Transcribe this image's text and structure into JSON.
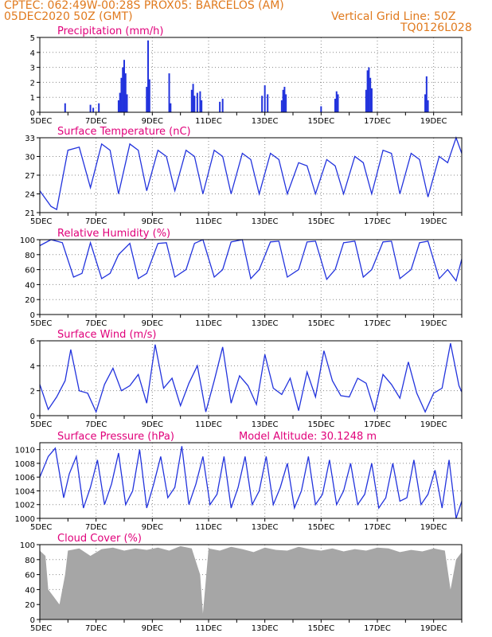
{
  "header": {
    "line1": "CPTEC:   062:49W-00:28S   PROX05: BARCELOS (AM)",
    "line2": "05DEC2020 50Z (GMT)",
    "grid_note": "Vertical Grid Line: 50Z",
    "code": "TQ0126L028"
  },
  "chart_data": [
    {
      "type": "bar",
      "title": "Precipitation (mm/h)",
      "ylim": [
        0,
        5
      ],
      "yticks": [
        0,
        1,
        2,
        3,
        4,
        5
      ],
      "xticks": [
        "5DEC",
        "7DEC",
        "9DEC",
        "11DEC",
        "13DEC",
        "15DEC",
        "17DEC",
        "19DEC"
      ],
      "days": 15,
      "events": [
        [
          0.9,
          0.6
        ],
        [
          1.8,
          0.5
        ],
        [
          1.9,
          0.3
        ],
        [
          2.1,
          0.6
        ],
        [
          2.8,
          0.8
        ],
        [
          2.85,
          1.3
        ],
        [
          2.9,
          2.3
        ],
        [
          2.95,
          3.0
        ],
        [
          3.0,
          3.5
        ],
        [
          3.05,
          2.6
        ],
        [
          3.1,
          1.2
        ],
        [
          3.8,
          1.7
        ],
        [
          3.85,
          4.8
        ],
        [
          3.9,
          2.2
        ],
        [
          4.6,
          2.6
        ],
        [
          4.65,
          0.6
        ],
        [
          5.4,
          1.5
        ],
        [
          5.45,
          1.9
        ],
        [
          5.5,
          1.1
        ],
        [
          5.6,
          1.3
        ],
        [
          5.7,
          1.4
        ],
        [
          5.75,
          0.8
        ],
        [
          6.4,
          0.7
        ],
        [
          6.5,
          0.9
        ],
        [
          7.9,
          1.1
        ],
        [
          8.0,
          1.8
        ],
        [
          8.1,
          1.2
        ],
        [
          8.6,
          0.8
        ],
        [
          8.65,
          1.5
        ],
        [
          8.7,
          1.7
        ],
        [
          8.75,
          1.2
        ],
        [
          10.0,
          0.4
        ],
        [
          10.5,
          0.9
        ],
        [
          10.55,
          1.4
        ],
        [
          10.6,
          1.2
        ],
        [
          11.6,
          1.5
        ],
        [
          11.65,
          2.8
        ],
        [
          11.7,
          3.0
        ],
        [
          11.75,
          2.3
        ],
        [
          11.8,
          1.6
        ],
        [
          13.7,
          1.2
        ],
        [
          13.75,
          2.4
        ],
        [
          13.8,
          0.8
        ]
      ],
      "vgrid": [
        "5DEC",
        "7DEC",
        "9DEC",
        "11DEC",
        "13DEC",
        "15DEC",
        "17DEC",
        "19DEC"
      ]
    },
    {
      "type": "line",
      "title": "Surface Temperature (nC)",
      "ylim": [
        21,
        33
      ],
      "yticks": [
        21,
        24,
        27,
        30,
        33
      ],
      "xticks": [
        "5DEC",
        "7DEC",
        "9DEC",
        "11DEC",
        "13DEC",
        "15DEC",
        "17DEC",
        "19DEC"
      ],
      "days": 15,
      "series": [
        {
          "x": [
            0,
            0.4,
            0.6,
            1.0,
            1.4,
            1.8,
            2.2,
            2.5,
            2.8,
            3.2,
            3.5,
            3.8,
            4.2,
            4.5,
            4.8,
            5.2,
            5.5,
            5.8,
            6.2,
            6.5,
            6.8,
            7.2,
            7.5,
            7.8,
            8.2,
            8.5,
            8.8,
            9.2,
            9.5,
            9.8,
            10.2,
            10.5,
            10.8,
            11.2,
            11.5,
            11.8,
            12.2,
            12.5,
            12.8,
            13.2,
            13.5,
            13.8,
            14.2,
            14.5,
            14.8,
            15
          ],
          "y": [
            24.5,
            22,
            21.5,
            31,
            31.5,
            25,
            32,
            31,
            24,
            32,
            31,
            24.5,
            31,
            30,
            24.5,
            31,
            30,
            24,
            31,
            30,
            24,
            30.5,
            29.5,
            24,
            30.5,
            29.5,
            24,
            29,
            28.5,
            24,
            29.5,
            28.5,
            24,
            30,
            29,
            24,
            31,
            30.5,
            24,
            30.5,
            29.5,
            23.5,
            30,
            29,
            33,
            30.5
          ]
        }
      ]
    },
    {
      "type": "line",
      "title": "Relative Humidity (%)",
      "ylim": [
        0,
        100
      ],
      "yticks": [
        0,
        20,
        40,
        60,
        80,
        100
      ],
      "xticks": [
        "5DEC",
        "7DEC",
        "9DEC",
        "11DEC",
        "13DEC",
        "15DEC",
        "17DEC",
        "19DEC"
      ],
      "days": 15,
      "series": [
        {
          "x": [
            0,
            0.4,
            0.8,
            1.2,
            1.5,
            1.8,
            2.2,
            2.5,
            2.8,
            3.2,
            3.5,
            3.8,
            4.2,
            4.5,
            4.8,
            5.2,
            5.5,
            5.8,
            6.2,
            6.5,
            6.8,
            7.2,
            7.5,
            7.8,
            8.2,
            8.5,
            8.8,
            9.2,
            9.5,
            9.8,
            10.2,
            10.5,
            10.8,
            11.2,
            11.5,
            11.8,
            12.2,
            12.5,
            12.8,
            13.2,
            13.5,
            13.8,
            14.2,
            14.5,
            14.8,
            15
          ],
          "y": [
            92,
            100,
            96,
            50,
            55,
            96,
            48,
            55,
            80,
            95,
            48,
            55,
            95,
            96,
            50,
            60,
            95,
            100,
            50,
            60,
            97,
            100,
            48,
            60,
            97,
            98,
            50,
            60,
            97,
            98,
            47,
            60,
            96,
            98,
            50,
            60,
            97,
            98,
            48,
            60,
            96,
            98,
            48,
            60,
            45,
            74
          ]
        }
      ]
    },
    {
      "type": "line",
      "title": "Surface Wind (m/s)",
      "ylim": [
        0,
        6
      ],
      "yticks": [
        0,
        2,
        4,
        6
      ],
      "xticks": [
        "5DEC",
        "7DEC",
        "9DEC",
        "11DEC",
        "13DEC",
        "15DEC",
        "17DEC",
        "19DEC"
      ],
      "days": 15,
      "series": [
        {
          "x": [
            0,
            0.3,
            0.6,
            0.9,
            1.1,
            1.4,
            1.7,
            2.0,
            2.3,
            2.6,
            2.9,
            3.2,
            3.5,
            3.8,
            4.1,
            4.4,
            4.7,
            5.0,
            5.3,
            5.6,
            5.9,
            6.2,
            6.5,
            6.8,
            7.1,
            7.4,
            7.7,
            8.0,
            8.3,
            8.6,
            8.9,
            9.2,
            9.5,
            9.8,
            10.1,
            10.4,
            10.7,
            11.0,
            11.3,
            11.6,
            11.9,
            12.2,
            12.5,
            12.8,
            13.1,
            13.4,
            13.7,
            14.0,
            14.3,
            14.6,
            14.9,
            15
          ],
          "y": [
            2.5,
            0.5,
            1.5,
            2.8,
            5.3,
            2.0,
            1.8,
            0.3,
            2.5,
            3.8,
            2.0,
            2.4,
            3.3,
            1.0,
            5.7,
            2.2,
            3.0,
            0.8,
            2.6,
            4.0,
            0.3,
            2.8,
            5.5,
            1.0,
            3.2,
            2.4,
            0.9,
            4.9,
            2.2,
            1.7,
            3.0,
            0.4,
            3.5,
            1.5,
            5.2,
            2.8,
            1.6,
            1.5,
            3.0,
            2.6,
            0.4,
            3.3,
            2.5,
            1.4,
            4.3,
            1.8,
            0.3,
            1.8,
            2.2,
            5.8,
            2.4,
            1.9
          ]
        }
      ]
    },
    {
      "type": "line",
      "title": "Surface Pressure (hPa)",
      "annotation": "Model Altitude: 30.1248 m",
      "ylim": [
        1000,
        1011
      ],
      "yticks": [
        1000,
        1002,
        1004,
        1006,
        1008,
        1010
      ],
      "xticks": [
        "5DEC",
        "7DEC",
        "9DEC",
        "11DEC",
        "13DEC",
        "15DEC",
        "17DEC",
        "19DEC"
      ],
      "days": 15,
      "series": [
        {
          "x": [
            0,
            0.3,
            0.55,
            0.85,
            1.05,
            1.3,
            1.55,
            1.8,
            2.05,
            2.3,
            2.55,
            2.8,
            3.05,
            3.3,
            3.55,
            3.8,
            4.05,
            4.3,
            4.55,
            4.8,
            5.05,
            5.3,
            5.55,
            5.8,
            6.05,
            6.3,
            6.55,
            6.8,
            7.05,
            7.3,
            7.55,
            7.8,
            8.05,
            8.3,
            8.55,
            8.8,
            9.05,
            9.3,
            9.55,
            9.8,
            10.05,
            10.3,
            10.55,
            10.8,
            11.05,
            11.3,
            11.55,
            11.8,
            12.05,
            12.3,
            12.55,
            12.8,
            13.05,
            13.3,
            13.55,
            13.8,
            14.05,
            14.3,
            14.55,
            14.8,
            15
          ],
          "y": [
            1006,
            1009,
            1010.2,
            1003,
            1006.5,
            1009,
            1001.5,
            1004.5,
            1008.5,
            1002,
            1005,
            1009.5,
            1002,
            1004,
            1010,
            1001.5,
            1005,
            1009,
            1003,
            1004.5,
            1010.5,
            1002,
            1005,
            1009,
            1002,
            1003.5,
            1009,
            1001.5,
            1004.5,
            1009,
            1002,
            1004,
            1009,
            1002,
            1004.5,
            1008,
            1001.5,
            1004,
            1009,
            1002,
            1003.5,
            1008.5,
            1002,
            1004,
            1008,
            1002,
            1003.5,
            1008,
            1001.5,
            1003,
            1008,
            1002.5,
            1003,
            1008.5,
            1002,
            1003.5,
            1007,
            1001.5,
            1008.5,
            1000,
            1002.5
          ]
        }
      ]
    },
    {
      "type": "area",
      "title": "Cloud Cover (%)",
      "ylim": [
        0,
        100
      ],
      "yticks": [
        0,
        20,
        40,
        60,
        80,
        100
      ],
      "xticks": [
        "5DEC",
        "7DEC",
        "9DEC",
        "11DEC",
        "13DEC",
        "15DEC",
        "17DEC",
        "19DEC"
      ],
      "days": 15,
      "series": [
        {
          "x": [
            0,
            0.2,
            0.3,
            0.5,
            0.7,
            0.9,
            1.0,
            1.4,
            1.8,
            2.2,
            2.6,
            3.0,
            3.4,
            3.8,
            4.2,
            4.6,
            5.0,
            5.4,
            5.7,
            5.8,
            6.0,
            6.4,
            6.8,
            7.2,
            7.6,
            8.0,
            8.4,
            8.8,
            9.2,
            9.6,
            10.0,
            10.4,
            10.8,
            11.2,
            11.6,
            12.0,
            12.4,
            12.8,
            13.2,
            13.6,
            14.0,
            14.4,
            14.6,
            14.8,
            15
          ],
          "y": [
            92,
            85,
            40,
            30,
            20,
            60,
            92,
            95,
            85,
            94,
            96,
            92,
            95,
            93,
            96,
            92,
            98,
            95,
            60,
            8,
            95,
            92,
            97,
            94,
            90,
            96,
            93,
            92,
            97,
            94,
            92,
            95,
            91,
            94,
            92,
            96,
            95,
            90,
            93,
            91,
            95,
            92,
            40,
            80,
            90
          ]
        }
      ]
    }
  ],
  "colors": {
    "header": "#e07a1e",
    "title": "#e0007a",
    "line": "#2233dd",
    "bar": "#2233dd",
    "area": "#a6a6a6",
    "grid": "#888888"
  }
}
